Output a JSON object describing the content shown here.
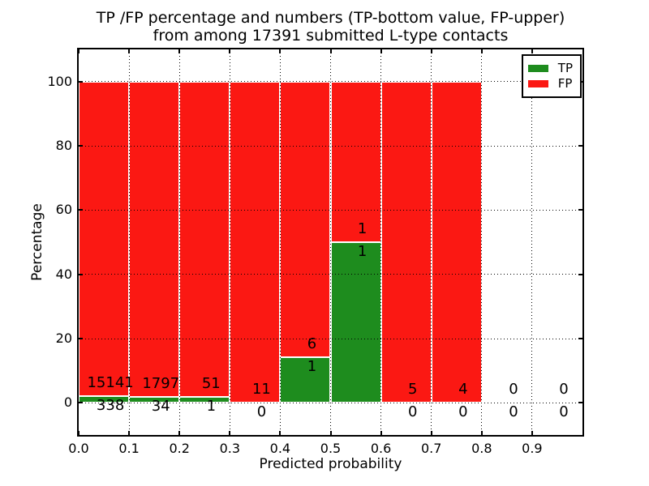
{
  "title": {
    "line1": "TP /FP percentage and numbers (TP-bottom value, FP-upper)",
    "line2": "from among 17391 submitted L-type contacts"
  },
  "axes": {
    "xlabel": "Predicted probability",
    "ylabel": "Percentage",
    "xlim": [
      0.0,
      1.0
    ],
    "ylim": [
      -10,
      110
    ],
    "x_ticks": [
      0.0,
      0.1,
      0.2,
      0.3,
      0.4,
      0.5,
      0.6,
      0.7,
      0.8,
      0.9
    ],
    "y_ticks": [
      0,
      20,
      40,
      60,
      80,
      100
    ],
    "grid_style": "dotted"
  },
  "legend": {
    "position": "upper-right",
    "entries": [
      {
        "label": "TP",
        "color": "#1e8c1e"
      },
      {
        "label": "FP",
        "color": "#fb1813"
      }
    ]
  },
  "colors": {
    "tp": "#1e8c1e",
    "fp": "#fb1813",
    "bar_edge": "#ffffff",
    "grid": "#000000",
    "text": "#000000",
    "background": "#ffffff"
  },
  "chart_data": {
    "type": "bar",
    "stacked": true,
    "units": "percent",
    "title": "TP /FP percentage and numbers (TP-bottom value, FP-upper) from among 17391 submitted L-type contacts",
    "xlabel": "Predicted probability",
    "ylabel": "Percentage",
    "total_submitted": 17391,
    "bin_width": 0.1,
    "label_x_offset": 0.063,
    "series": [
      {
        "name": "TP",
        "color": "#1e8c1e",
        "position": "bottom"
      },
      {
        "name": "FP",
        "color": "#fb1813",
        "position": "top"
      }
    ],
    "bins": [
      {
        "x0": 0.0,
        "x1": 0.1,
        "tp_count": 338,
        "fp_count": 15141,
        "tp_pct": 2.18,
        "fp_pct": 97.82,
        "has_bar": true
      },
      {
        "x0": 0.1,
        "x1": 0.2,
        "tp_count": 34,
        "fp_count": 1797,
        "tp_pct": 1.86,
        "fp_pct": 98.14,
        "has_bar": true
      },
      {
        "x0": 0.2,
        "x1": 0.3,
        "tp_count": 1,
        "fp_count": 51,
        "tp_pct": 1.92,
        "fp_pct": 98.08,
        "has_bar": true
      },
      {
        "x0": 0.3,
        "x1": 0.4,
        "tp_count": 0,
        "fp_count": 11,
        "tp_pct": 0,
        "fp_pct": 100,
        "has_bar": true
      },
      {
        "x0": 0.4,
        "x1": 0.5,
        "tp_count": 1,
        "fp_count": 6,
        "tp_pct": 14.29,
        "fp_pct": 85.71,
        "has_bar": true
      },
      {
        "x0": 0.5,
        "x1": 0.6,
        "tp_count": 1,
        "fp_count": 1,
        "tp_pct": 50,
        "fp_pct": 50,
        "has_bar": true
      },
      {
        "x0": 0.6,
        "x1": 0.7,
        "tp_count": 0,
        "fp_count": 5,
        "tp_pct": 0,
        "fp_pct": 100,
        "has_bar": true
      },
      {
        "x0": 0.7,
        "x1": 0.8,
        "tp_count": 0,
        "fp_count": 4,
        "tp_pct": 0,
        "fp_pct": 100,
        "has_bar": true
      },
      {
        "x0": 0.8,
        "x1": 0.9,
        "tp_count": 0,
        "fp_count": 0,
        "tp_pct": null,
        "fp_pct": null,
        "has_bar": false
      },
      {
        "x0": 0.9,
        "x1": 1.0,
        "tp_count": 0,
        "fp_count": 0,
        "tp_pct": null,
        "fp_pct": null,
        "has_bar": false
      }
    ]
  }
}
